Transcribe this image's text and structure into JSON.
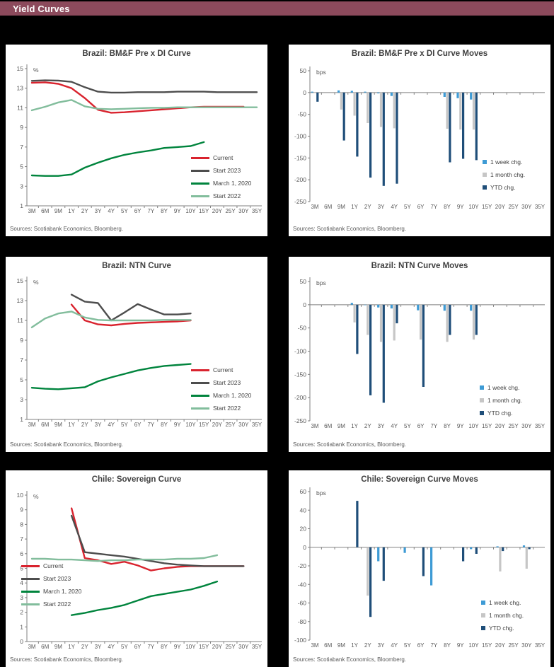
{
  "header": {
    "title": "Yield Curves"
  },
  "style": {
    "page_bg": "#000000",
    "panel_bg": "#FFFFFF",
    "header_bg": "#8C4A5C",
    "header_text": "#FFFFFF",
    "title_color": "#404040",
    "axis_color": "#808080",
    "tick_text_color": "#595959",
    "series_colors": {
      "current_red": "#D9232E",
      "start2023_gray": "#4D4D4D",
      "march2020_green": "#00843D",
      "start2022_lightgreen": "#82BD9C",
      "week_lightblue": "#3E9BD5",
      "month_gray": "#C6C6C6",
      "ytd_navy": "#1F4E79"
    }
  },
  "charts": [
    {
      "title": "Brazil: BM&F Pre x DI Curve",
      "type": "line",
      "unit": "%",
      "sources": "Sources: Scotiabank Economics, Bloomberg.",
      "ylim": [
        1,
        15
      ],
      "yticks": [
        15,
        13,
        11,
        9,
        7,
        5,
        3,
        1
      ],
      "categories": [
        "3M",
        "6M",
        "9M",
        "1Y",
        "2Y",
        "3Y",
        "4Y",
        "5Y",
        "6Y",
        "7Y",
        "8Y",
        "9Y",
        "10Y",
        "15Y",
        "20Y",
        "25Y",
        "30Y",
        "35Y"
      ],
      "series": [
        {
          "name": "Current",
          "color": "#D9232E",
          "values": [
            13.55,
            13.6,
            13.45,
            13.0,
            12.0,
            10.8,
            10.5,
            10.55,
            10.65,
            10.75,
            10.85,
            10.95,
            11.05,
            11.1,
            11.1,
            11.1,
            11.1,
            null
          ]
        },
        {
          "name": "Start 2023",
          "color": "#4D4D4D",
          "values": [
            13.75,
            13.8,
            13.78,
            13.65,
            13.1,
            12.65,
            12.55,
            12.55,
            12.6,
            12.6,
            12.6,
            12.65,
            12.65,
            12.65,
            12.6,
            12.6,
            12.6,
            12.6
          ]
        },
        {
          "name": "March 1, 2020",
          "color": "#00843D",
          "values": [
            4.1,
            4.05,
            4.05,
            4.2,
            4.9,
            5.4,
            5.85,
            6.2,
            6.45,
            6.65,
            6.9,
            7.0,
            7.1,
            7.5,
            null,
            null,
            null,
            null
          ]
        },
        {
          "name": "Start 2022",
          "color": "#82BD9C",
          "values": [
            10.75,
            11.1,
            11.55,
            11.8,
            11.15,
            10.9,
            10.85,
            10.9,
            10.95,
            11.0,
            11.0,
            11.05,
            11.05,
            11.05,
            11.05,
            11.05,
            11.05,
            11.05
          ]
        }
      ]
    },
    {
      "title": "Brazil: BM&F Pre x DI Curve Moves",
      "type": "bar",
      "unit": "bps",
      "sources": "Sources: Scotiabank Economics, Bloomberg.",
      "ylim": [
        -250,
        50
      ],
      "yticks": [
        50,
        0,
        -50,
        -100,
        -150,
        -200,
        -250
      ],
      "categories": [
        "3M",
        "6M",
        "9M",
        "1Y",
        "2Y",
        "3Y",
        "4Y",
        "5Y",
        "6Y",
        "7Y",
        "8Y",
        "9Y",
        "10Y",
        "15Y",
        "20Y",
        "25Y",
        "30Y",
        "35Y"
      ],
      "series": [
        {
          "name": "1 week chg.",
          "color": "#3E9BD5",
          "values": [
            2,
            null,
            5,
            4,
            2,
            -2,
            -8,
            null,
            null,
            null,
            -10,
            -13,
            -16,
            null,
            null,
            null,
            null,
            null
          ]
        },
        {
          "name": "1 month chg.",
          "color": "#C6C6C6",
          "values": [
            -1,
            null,
            -39,
            -53,
            -70,
            -79,
            -82,
            null,
            null,
            null,
            -83,
            -85,
            -85,
            null,
            null,
            null,
            null,
            null
          ]
        },
        {
          "name": "YTD chg.",
          "color": "#1F4E79",
          "values": [
            -21,
            null,
            -110,
            -147,
            -195,
            -214,
            -209,
            null,
            null,
            null,
            -160,
            -152,
            -155,
            null,
            null,
            null,
            null,
            null
          ]
        }
      ]
    },
    {
      "title": "Brazil: NTN Curve",
      "type": "line",
      "unit": "%",
      "sources": "Sources: Scotiabank Economics, Bloomberg.",
      "ylim": [
        1,
        15
      ],
      "yticks": [
        15,
        13,
        11,
        9,
        7,
        5,
        3,
        1
      ],
      "categories": [
        "3M",
        "6M",
        "9M",
        "1Y",
        "2Y",
        "3Y",
        "4Y",
        "5Y",
        "6Y",
        "7Y",
        "8Y",
        "9Y",
        "10Y",
        "15Y",
        "20Y",
        "25Y",
        "30Y",
        "35Y"
      ],
      "series": [
        {
          "name": "Current",
          "color": "#D9232E",
          "values": [
            null,
            null,
            null,
            12.6,
            11.0,
            10.6,
            10.5,
            10.65,
            10.75,
            10.8,
            10.85,
            10.9,
            11.0,
            null,
            null,
            null,
            null,
            null
          ]
        },
        {
          "name": "Start 2023",
          "color": "#4D4D4D",
          "values": [
            null,
            null,
            null,
            13.6,
            12.9,
            12.75,
            11.0,
            11.8,
            12.65,
            12.1,
            11.6,
            11.6,
            11.7,
            null,
            null,
            null,
            null,
            null
          ]
        },
        {
          "name": "March 1, 2020",
          "color": "#00843D",
          "values": [
            4.2,
            4.1,
            4.05,
            4.15,
            4.25,
            4.85,
            5.25,
            5.6,
            5.95,
            6.2,
            6.4,
            6.5,
            6.6,
            null,
            null,
            null,
            null,
            null
          ]
        },
        {
          "name": "Start 2022",
          "color": "#82BD9C",
          "values": [
            10.3,
            11.2,
            11.7,
            11.9,
            11.3,
            11.05,
            11.0,
            11.0,
            11.0,
            11.0,
            11.05,
            11.05,
            11.05,
            null,
            null,
            null,
            null,
            null
          ]
        }
      ]
    },
    {
      "title": "Brazil: NTN Curve Moves",
      "type": "bar",
      "unit": "bps",
      "sources": "Sources: Scotiabank Economics, Bloomberg.",
      "ylim": [
        -250,
        50
      ],
      "yticks": [
        50,
        0,
        -50,
        -100,
        -150,
        -200,
        -250
      ],
      "categories": [
        "3M",
        "6M",
        "9M",
        "1Y",
        "2Y",
        "3Y",
        "4Y",
        "5Y",
        "6Y",
        "7Y",
        "8Y",
        "9Y",
        "10Y",
        "15Y",
        "20Y",
        "25Y",
        "30Y",
        "35Y"
      ],
      "series": [
        {
          "name": "1 week chg.",
          "color": "#3E9BD5",
          "values": [
            null,
            null,
            null,
            4,
            -1,
            -6,
            -8,
            null,
            -12,
            null,
            -13,
            null,
            -13,
            null,
            null,
            null,
            null,
            null
          ]
        },
        {
          "name": "1 month chg.",
          "color": "#C6C6C6",
          "values": [
            null,
            null,
            null,
            -38,
            -65,
            -80,
            -77,
            null,
            -75,
            null,
            -80,
            null,
            -75,
            null,
            null,
            null,
            null,
            null
          ]
        },
        {
          "name": "YTD chg.",
          "color": "#1F4E79",
          "values": [
            null,
            null,
            null,
            -106,
            -195,
            -211,
            -40,
            null,
            -177,
            null,
            -65,
            null,
            -65,
            null,
            null,
            null,
            null,
            null
          ]
        }
      ]
    },
    {
      "title": "Chile: Sovereign Curve",
      "type": "line",
      "unit": "%",
      "sources": "Sources: Scotiabank Economics, Bloomberg.",
      "ylim": [
        0,
        10
      ],
      "yticks": [
        10,
        9,
        8,
        7,
        6,
        5,
        4,
        3,
        2,
        1,
        0
      ],
      "categories": [
        "3M",
        "6M",
        "9M",
        "1Y",
        "2Y",
        "3Y",
        "4Y",
        "5Y",
        "6Y",
        "7Y",
        "8Y",
        "9Y",
        "10Y",
        "15Y",
        "20Y",
        "25Y",
        "30Y",
        "35Y"
      ],
      "series": [
        {
          "name": "Current",
          "color": "#D9232E",
          "values": [
            null,
            null,
            null,
            9.1,
            5.7,
            5.55,
            5.3,
            5.45,
            5.2,
            4.85,
            5.0,
            5.1,
            5.15,
            5.15,
            5.15,
            5.15,
            5.15,
            null
          ]
        },
        {
          "name": "Start 2023",
          "color": "#4D4D4D",
          "values": [
            null,
            null,
            null,
            8.6,
            6.1,
            6.0,
            5.9,
            5.8,
            5.65,
            5.5,
            5.35,
            5.25,
            5.2,
            5.15,
            5.15,
            5.15,
            5.15,
            null
          ]
        },
        {
          "name": "March 1, 2020",
          "color": "#00843D",
          "values": [
            null,
            null,
            null,
            1.8,
            1.95,
            2.15,
            2.3,
            2.5,
            2.8,
            3.1,
            3.25,
            3.4,
            3.55,
            3.8,
            4.1,
            null,
            null,
            null
          ]
        },
        {
          "name": "Start 2022",
          "color": "#82BD9C",
          "values": [
            5.65,
            5.65,
            5.6,
            5.6,
            5.55,
            5.5,
            5.55,
            5.55,
            5.6,
            5.6,
            5.6,
            5.65,
            5.65,
            5.7,
            5.9,
            null,
            null,
            null
          ]
        }
      ]
    },
    {
      "title": "Chile: Sovereign Curve Moves",
      "type": "bar",
      "unit": "bps",
      "sources": "Sources: Scotiabank Economics, Bloomberg.",
      "ylim": [
        -100,
        60
      ],
      "yticks": [
        60,
        40,
        20,
        0,
        -20,
        -40,
        -60,
        -80,
        -100
      ],
      "categories": [
        "3M",
        "6M",
        "9M",
        "1Y",
        "2Y",
        "3Y",
        "4Y",
        "5Y",
        "6Y",
        "7Y",
        "8Y",
        "9Y",
        "10Y",
        "15Y",
        "20Y",
        "25Y",
        "30Y",
        "35Y"
      ],
      "series": [
        {
          "name": "1 week chg.",
          "color": "#3E9BD5",
          "values": [
            null,
            null,
            null,
            null,
            null,
            -15,
            null,
            -6,
            null,
            -41,
            null,
            null,
            -2,
            null,
            1,
            null,
            2,
            null
          ]
        },
        {
          "name": "1 month chg.",
          "color": "#C6C6C6",
          "values": [
            null,
            null,
            null,
            null,
            -52,
            null,
            null,
            null,
            null,
            null,
            null,
            null,
            null,
            null,
            -26,
            null,
            -23,
            null
          ]
        },
        {
          "name": "YTD chg.",
          "color": "#1F4E79",
          "values": [
            null,
            null,
            null,
            50,
            -75,
            -36,
            null,
            null,
            -31,
            null,
            null,
            -15,
            -7,
            null,
            -4,
            null,
            -2,
            null
          ]
        }
      ]
    }
  ]
}
